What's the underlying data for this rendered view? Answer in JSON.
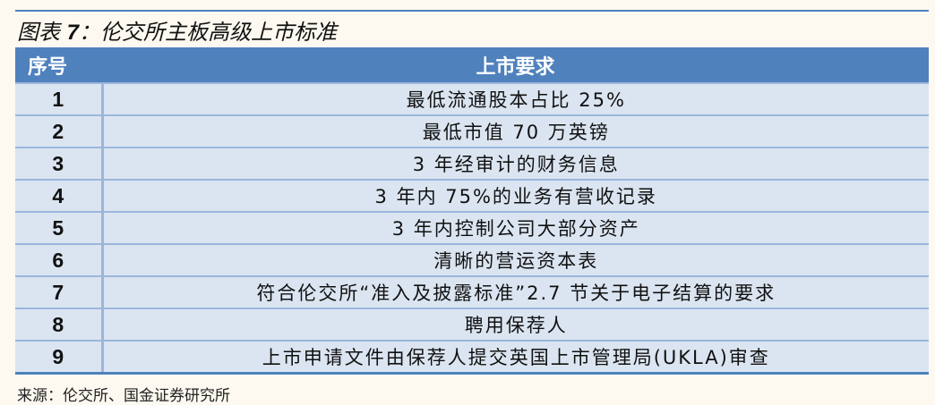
{
  "title": {
    "prefix": "图表",
    "number": "7",
    "text": "：伦交所主板高级上市标准"
  },
  "table": {
    "headers": [
      "序号",
      "上市要求"
    ],
    "rows": [
      {
        "num": "1",
        "req": "最低流通股本占比 25%"
      },
      {
        "num": "2",
        "req": "最低市值 70 万英镑"
      },
      {
        "num": "3",
        "req": "3 年经审计的财务信息"
      },
      {
        "num": "4",
        "req": "3 年内 75%的业务有营收记录"
      },
      {
        "num": "5",
        "req": "3 年内控制公司大部分资产"
      },
      {
        "num": "6",
        "req": "清晰的营运资本表"
      },
      {
        "num": "7",
        "req": "符合伦交所“准入及披露标准”2.7 节关于电子结算的要求"
      },
      {
        "num": "8",
        "req": "聘用保荐人"
      },
      {
        "num": "9",
        "req": "上市申请文件由保荐人提交英国上市管理局(UKLA)审查"
      }
    ]
  },
  "source": "来源：伦交所、国金证券研究所",
  "colors": {
    "header_bg": "#4f81bd",
    "row_bg": "#dbe5f1",
    "background": "#fdf9f0"
  }
}
